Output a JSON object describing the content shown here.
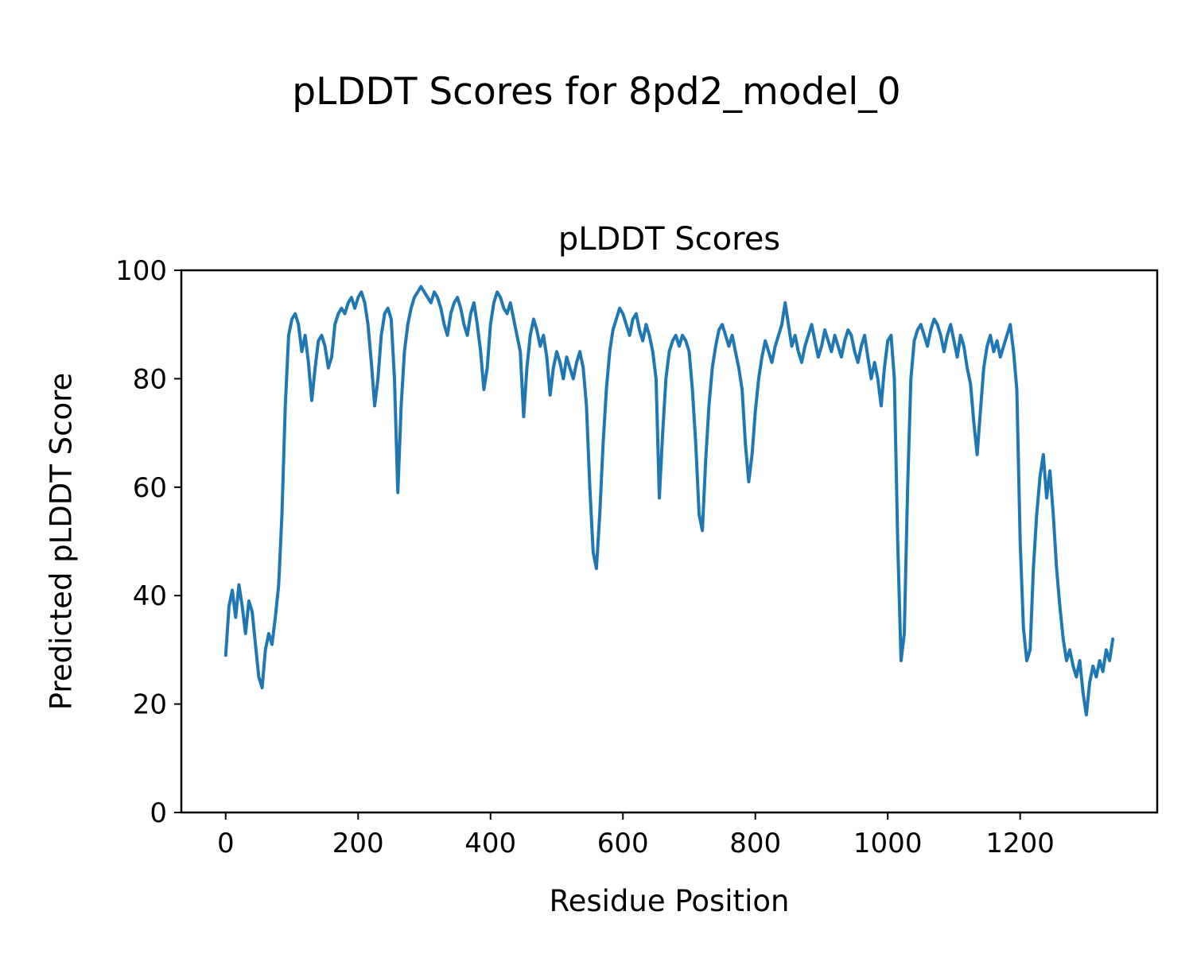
{
  "figure": {
    "suptitle": "pLDDT Scores for 8pd2_model_0",
    "axes_title": "pLDDT Scores",
    "xlabel": "Residue Position",
    "ylabel": "Predicted pLDDT Score"
  },
  "chart_data": {
    "type": "line",
    "title": "pLDDT Scores",
    "xlabel": "Residue Position",
    "ylabel": "Predicted pLDDT Score",
    "xlim": [
      -67,
      1407
    ],
    "ylim": [
      0,
      100
    ],
    "x_ticks": [
      0,
      200,
      400,
      600,
      800,
      1000,
      1200
    ],
    "y_ticks": [
      0,
      20,
      40,
      60,
      80,
      100
    ],
    "grid": false,
    "legend": false,
    "line_color": "#1f77b4",
    "line_width": 4,
    "series": [
      {
        "name": "pLDDT",
        "x_start": 0,
        "x_step": 5,
        "y": [
          29,
          38,
          41,
          36,
          42,
          38,
          33,
          39,
          37,
          31,
          25,
          23,
          30,
          33,
          31,
          36,
          42,
          55,
          75,
          88,
          91,
          92,
          90,
          85,
          88,
          83,
          76,
          82,
          87,
          88,
          86,
          82,
          84,
          90,
          92,
          93,
          92,
          94,
          95,
          93,
          95,
          96,
          94,
          90,
          83,
          75,
          80,
          88,
          92,
          93,
          91,
          80,
          59,
          75,
          85,
          90,
          93,
          95,
          96,
          97,
          96,
          95,
          94,
          96,
          95,
          93,
          90,
          88,
          92,
          94,
          95,
          93,
          90,
          88,
          92,
          94,
          90,
          85,
          78,
          82,
          90,
          94,
          96,
          95,
          93,
          92,
          94,
          91,
          88,
          85,
          73,
          82,
          88,
          91,
          89,
          86,
          88,
          84,
          77,
          82,
          85,
          83,
          80,
          84,
          82,
          80,
          83,
          85,
          82,
          75,
          60,
          48,
          45,
          55,
          68,
          78,
          85,
          89,
          91,
          93,
          92,
          90,
          88,
          91,
          92,
          89,
          87,
          90,
          88,
          85,
          80,
          58,
          70,
          80,
          85,
          87,
          88,
          86,
          88,
          87,
          85,
          78,
          68,
          55,
          52,
          65,
          75,
          82,
          86,
          89,
          90,
          88,
          86,
          88,
          85,
          82,
          78,
          68,
          61,
          66,
          74,
          80,
          84,
          87,
          85,
          83,
          86,
          88,
          90,
          94,
          90,
          86,
          88,
          85,
          83,
          86,
          88,
          90,
          87,
          84,
          86,
          89,
          87,
          85,
          88,
          86,
          84,
          87,
          89,
          88,
          85,
          83,
          86,
          88,
          84,
          80,
          83,
          80,
          75,
          82,
          87,
          88,
          80,
          50,
          28,
          33,
          60,
          80,
          87,
          89,
          90,
          88,
          86,
          89,
          91,
          90,
          88,
          85,
          88,
          90,
          87,
          84,
          88,
          86,
          82,
          79,
          72,
          66,
          74,
          82,
          86,
          88,
          85,
          87,
          84,
          86,
          88,
          90,
          85,
          78,
          50,
          34,
          28,
          30,
          45,
          55,
          62,
          66,
          58,
          63,
          55,
          45,
          38,
          32,
          28,
          30,
          27,
          25,
          28,
          22,
          18,
          24,
          27,
          25,
          28,
          26,
          30,
          28,
          32
        ]
      }
    ]
  }
}
